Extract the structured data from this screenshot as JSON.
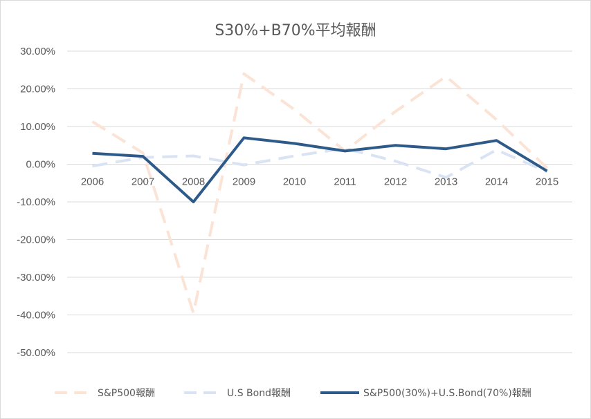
{
  "chart_data": {
    "type": "line",
    "title": "S30%+B70%平均報酬",
    "categories": [
      "2006",
      "2007",
      "2008",
      "2009",
      "2010",
      "2011",
      "2012",
      "2013",
      "2014",
      "2015"
    ],
    "y_ticks": [
      "30.00%",
      "20.00%",
      "10.00%",
      "0.00%",
      "-10.00%",
      "-20.00%",
      "-30.00%",
      "-40.00%",
      "-50.00%"
    ],
    "ylim": [
      -50,
      30
    ],
    "grid": true,
    "legend_position": "bottom",
    "series": [
      {
        "name": "S&P500報酬",
        "style": "dashed",
        "color": "#fbe3d6",
        "values": [
          11.3,
          3.0,
          -39.5,
          24.0,
          14.5,
          3.5,
          14.0,
          23.3,
          11.8,
          -1.0
        ]
      },
      {
        "name": "U.S Bond報酬",
        "style": "dashed",
        "color": "#dae3f3",
        "values": [
          -0.5,
          1.8,
          2.2,
          -0.2,
          2.2,
          4.2,
          0.8,
          -3.5,
          3.8,
          -2.0
        ]
      },
      {
        "name": "S&P500(30%)+U.S.Bond(70%)報酬",
        "style": "solid",
        "color": "#2e5a8a",
        "values": [
          2.9,
          2.1,
          -10.0,
          7.0,
          5.5,
          3.5,
          5.0,
          4.1,
          6.3,
          -1.8
        ]
      }
    ]
  }
}
